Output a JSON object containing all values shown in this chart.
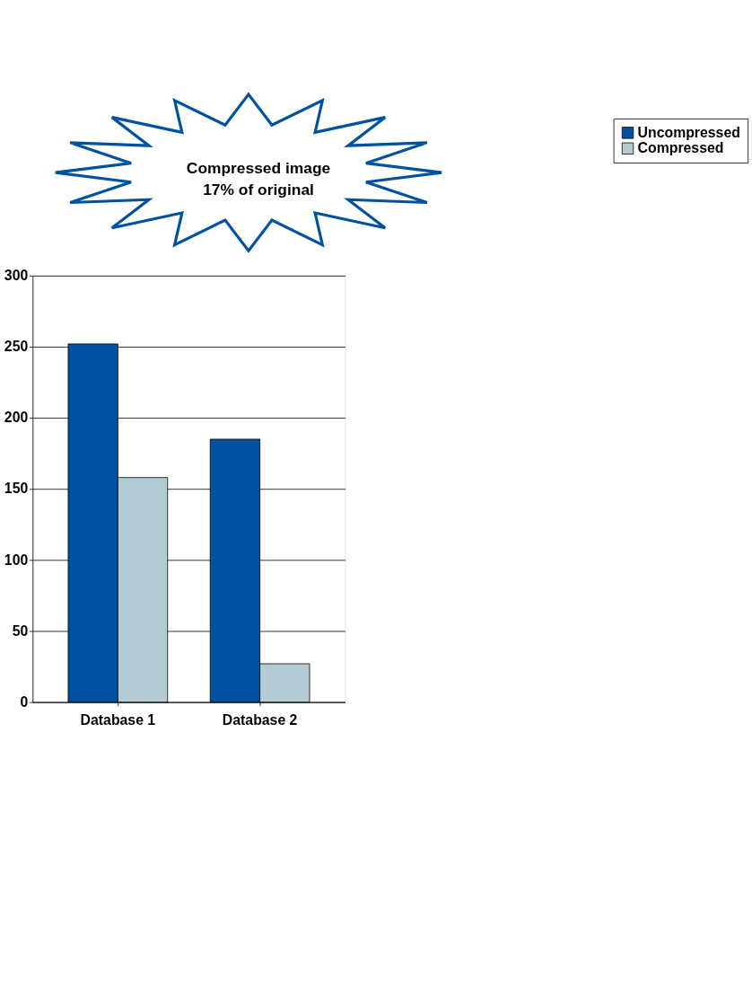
{
  "chart_data": {
    "type": "bar",
    "annotations": [
      "Compressed image\n17% of original"
    ],
    "categories": [
      "Database 1",
      "Database 2"
    ],
    "series": [
      {
        "name": "Uncompressed",
        "color": "#0051a0",
        "values": [
          252,
          185
        ]
      },
      {
        "name": "Compressed",
        "color": "#b3cbd3",
        "values": [
          158,
          27
        ]
      }
    ],
    "ylim": [
      0,
      300
    ],
    "yticks": [
      0,
      50,
      100,
      150,
      200,
      250,
      300
    ],
    "grid": "y",
    "legend": "right"
  }
}
